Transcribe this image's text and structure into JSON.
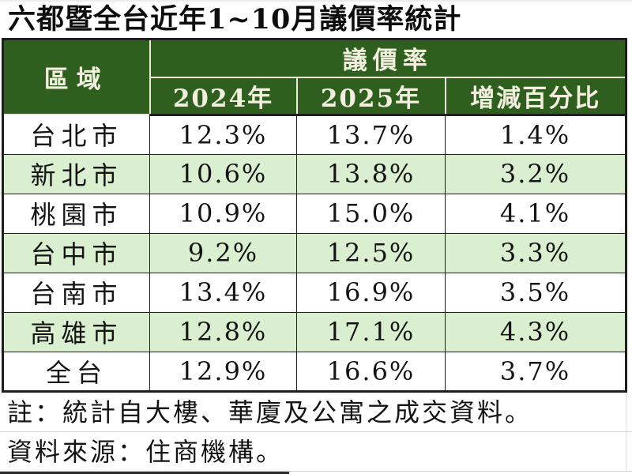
{
  "title": "六都暨全台近年1~10月議價率統計",
  "table": {
    "region_header": "區域",
    "group_header": "議價率",
    "columns": [
      "2024年",
      "2025年",
      "增減百分比"
    ],
    "rows": [
      {
        "region": "台北市",
        "y2024": "12.3%",
        "y2025": "13.7%",
        "diff": "1.4%"
      },
      {
        "region": "新北市",
        "y2024": "10.6%",
        "y2025": "13.8%",
        "diff": "3.2%"
      },
      {
        "region": "桃園市",
        "y2024": "10.9%",
        "y2025": "15.0%",
        "diff": "4.1%"
      },
      {
        "region": "台中市",
        "y2024": "9.2%",
        "y2025": "12.5%",
        "diff": "3.3%"
      },
      {
        "region": "台南市",
        "y2024": "13.4%",
        "y2025": "16.9%",
        "diff": "3.5%"
      },
      {
        "region": "高雄市",
        "y2024": "12.8%",
        "y2025": "17.1%",
        "diff": "4.3%"
      },
      {
        "region": "全台",
        "y2024": "12.9%",
        "y2025": "16.6%",
        "diff": "3.7%"
      }
    ]
  },
  "notes": {
    "note": "註：統計自大樓、華廈及公寓之成交資料。",
    "source": "資料來源：住商機構。"
  },
  "colors": {
    "header_bg": "#2f5f1f",
    "header_text": "#f2efdf",
    "stripe_green": "#d9efd0",
    "border_dark": "#1f1f1f",
    "row_white": "#ffffff"
  },
  "chart_data": {
    "type": "table",
    "title": "六都暨全台近年1~10月議價率統計",
    "categories": [
      "台北市",
      "新北市",
      "桃園市",
      "台中市",
      "台南市",
      "高雄市",
      "全台"
    ],
    "series": [
      {
        "name": "2024年",
        "values": [
          12.3,
          10.6,
          10.9,
          9.2,
          13.4,
          12.8,
          12.9
        ]
      },
      {
        "name": "2025年",
        "values": [
          13.7,
          13.8,
          15.0,
          12.5,
          16.9,
          17.1,
          16.6
        ]
      },
      {
        "name": "增減百分比",
        "values": [
          1.4,
          3.2,
          4.1,
          3.3,
          3.5,
          4.3,
          3.7
        ]
      }
    ],
    "unit": "%",
    "notes": [
      "註：統計自大樓、華廈及公寓之成交資料。",
      "資料來源：住商機構。"
    ]
  }
}
